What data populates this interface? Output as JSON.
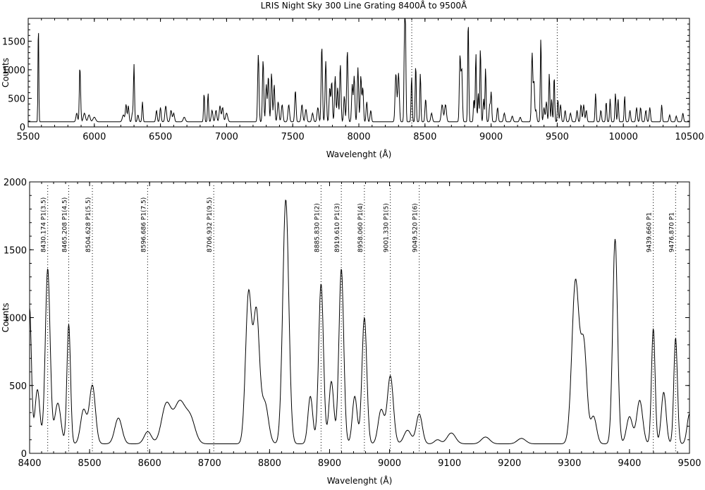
{
  "chart_data": [
    {
      "type": "line",
      "title": "LRIS Night Sky 300 Line Grating 8400Å to 9500Å",
      "xlabel": "Wavelenght (Å)",
      "ylabel": "Counts",
      "xlim": [
        5500,
        10500
      ],
      "ylim": [
        0,
        1900
      ],
      "x_ticks": [
        5500,
        6000,
        6500,
        7000,
        7500,
        8000,
        8500,
        9000,
        9500,
        10000,
        10500
      ],
      "y_ticks": [
        0,
        500,
        1000,
        1500
      ],
      "vlines": [
        8400,
        9500
      ],
      "baseline": 90,
      "peaks": [
        [
          5577,
          1780,
          3
        ],
        [
          5867,
          150,
          6
        ],
        [
          5890,
          850,
          4
        ],
        [
          5896,
          300,
          4
        ],
        [
          5925,
          150,
          8
        ],
        [
          5960,
          120,
          8
        ],
        [
          6000,
          80,
          10
        ],
        [
          6220,
          120,
          8
        ],
        [
          6240,
          300,
          5
        ],
        [
          6257,
          280,
          5
        ],
        [
          6288,
          150,
          5
        ],
        [
          6300,
          1000,
          4
        ],
        [
          6330,
          120,
          5
        ],
        [
          6364,
          350,
          4
        ],
        [
          6470,
          200,
          5
        ],
        [
          6500,
          250,
          5
        ],
        [
          6540,
          280,
          6
        ],
        [
          6580,
          200,
          6
        ],
        [
          6600,
          150,
          6
        ],
        [
          6680,
          80,
          8
        ],
        [
          6830,
          500,
          4
        ],
        [
          6860,
          500,
          4
        ],
        [
          6890,
          200,
          6
        ],
        [
          6920,
          200,
          6
        ],
        [
          6950,
          280,
          6
        ],
        [
          6970,
          250,
          6
        ],
        [
          7000,
          150,
          8
        ],
        [
          7240,
          1180,
          5
        ],
        [
          7276,
          1080,
          5
        ],
        [
          7300,
          650,
          5
        ],
        [
          7316,
          800,
          5
        ],
        [
          7340,
          850,
          5
        ],
        [
          7360,
          650,
          5
        ],
        [
          7390,
          350,
          6
        ],
        [
          7420,
          300,
          6
        ],
        [
          7470,
          300,
          6
        ],
        [
          7520,
          550,
          5
        ],
        [
          7570,
          300,
          6
        ],
        [
          7600,
          220,
          6
        ],
        [
          7650,
          150,
          6
        ],
        [
          7690,
          250,
          6
        ],
        [
          7720,
          1330,
          5
        ],
        [
          7750,
          1060,
          5
        ],
        [
          7780,
          600,
          5
        ],
        [
          7795,
          700,
          5
        ],
        [
          7821,
          800,
          5
        ],
        [
          7840,
          600,
          5
        ],
        [
          7860,
          1000,
          5
        ],
        [
          7890,
          450,
          5
        ],
        [
          7913,
          1260,
          5
        ],
        [
          7950,
          650,
          5
        ],
        [
          7965,
          800,
          5
        ],
        [
          7993,
          950,
          5
        ],
        [
          8015,
          800,
          5
        ],
        [
          8030,
          600,
          5
        ],
        [
          8060,
          350,
          5
        ],
        [
          8090,
          200,
          5
        ],
        [
          8280,
          850,
          6
        ],
        [
          8300,
          850,
          6
        ],
        [
          8345,
          1300,
          4
        ],
        [
          8352,
          1700,
          4
        ],
        [
          8399,
          800,
          4
        ],
        [
          8430,
          1000,
          4
        ],
        [
          8465,
          850,
          4
        ],
        [
          8505,
          400,
          5
        ],
        [
          8550,
          150,
          6
        ],
        [
          8630,
          300,
          7
        ],
        [
          8655,
          300,
          7
        ],
        [
          8765,
          1150,
          5
        ],
        [
          8778,
          900,
          5
        ],
        [
          8827,
          1790,
          4
        ],
        [
          8870,
          400,
          4
        ],
        [
          8885,
          1200,
          4
        ],
        [
          8903,
          500,
          4
        ],
        [
          8919,
          1300,
          4
        ],
        [
          8943,
          400,
          4
        ],
        [
          8958,
          950,
          4
        ],
        [
          8990,
          300,
          5
        ],
        [
          9001,
          500,
          4
        ],
        [
          9049,
          250,
          5
        ],
        [
          9100,
          150,
          6
        ],
        [
          9160,
          100,
          6
        ],
        [
          9220,
          80,
          6
        ],
        [
          9310,
          1200,
          5
        ],
        [
          9324,
          700,
          5
        ],
        [
          9340,
          200,
          5
        ],
        [
          9376,
          1480,
          4
        ],
        [
          9400,
          250,
          5
        ],
        [
          9418,
          350,
          5
        ],
        [
          9440,
          850,
          4
        ],
        [
          9458,
          400,
          4
        ],
        [
          9477,
          800,
          4
        ],
        [
          9505,
          400,
          4
        ],
        [
          9525,
          300,
          5
        ],
        [
          9560,
          200,
          5
        ],
        [
          9600,
          150,
          6
        ],
        [
          9650,
          200,
          5
        ],
        [
          9680,
          300,
          5
        ],
        [
          9700,
          300,
          5
        ],
        [
          9720,
          200,
          5
        ],
        [
          9790,
          500,
          4
        ],
        [
          9830,
          200,
          5
        ],
        [
          9870,
          350,
          4
        ],
        [
          9900,
          400,
          4
        ],
        [
          9940,
          500,
          4
        ],
        [
          9960,
          400,
          4
        ],
        [
          10010,
          450,
          4
        ],
        [
          10050,
          200,
          5
        ],
        [
          10100,
          250,
          5
        ],
        [
          10130,
          250,
          5
        ],
        [
          10170,
          200,
          5
        ],
        [
          10200,
          250,
          5
        ],
        [
          10290,
          300,
          4
        ],
        [
          10350,
          120,
          5
        ],
        [
          10400,
          100,
          5
        ],
        [
          10450,
          150,
          5
        ]
      ]
    },
    {
      "type": "line",
      "xlabel": "Wavelenght (Å)",
      "ylabel": "Counts",
      "xlim": [
        8400,
        9500
      ],
      "ylim": [
        0,
        2000
      ],
      "x_ticks": [
        8400,
        8500,
        8600,
        8700,
        8800,
        8900,
        9000,
        9100,
        9200,
        9300,
        9400,
        9500
      ],
      "y_ticks": [
        0,
        500,
        1000,
        1500,
        2000
      ],
      "baseline": 70,
      "peaks": [
        [
          8400,
          1000,
          3
        ],
        [
          8413,
          400,
          4
        ],
        [
          8430.174,
          1290,
          4
        ],
        [
          8447,
          300,
          5
        ],
        [
          8465.208,
          880,
          3
        ],
        [
          8490,
          250,
          5
        ],
        [
          8504.628,
          430,
          5
        ],
        [
          8548,
          190,
          6
        ],
        [
          8597,
          90,
          6
        ],
        [
          8628,
          290,
          8
        ],
        [
          8650,
          300,
          9
        ],
        [
          8668,
          180,
          8
        ],
        [
          8765,
          1100,
          5
        ],
        [
          8778,
          950,
          5
        ],
        [
          8792,
          300,
          6
        ],
        [
          8827,
          1800,
          5
        ],
        [
          8868,
          350,
          4
        ],
        [
          8885.83,
          1180,
          4
        ],
        [
          8903,
          460,
          4
        ],
        [
          8919.61,
          1290,
          4
        ],
        [
          8942,
          350,
          4
        ],
        [
          8958.06,
          930,
          4
        ],
        [
          8986,
          250,
          5
        ],
        [
          9001.33,
          500,
          5
        ],
        [
          9030,
          100,
          6
        ],
        [
          9049.52,
          220,
          5
        ],
        [
          9080,
          30,
          5
        ],
        [
          9103,
          80,
          7
        ],
        [
          9160,
          50,
          7
        ],
        [
          9220,
          40,
          7
        ],
        [
          9310,
          1200,
          6
        ],
        [
          9324,
          700,
          5
        ],
        [
          9340,
          200,
          5
        ],
        [
          9376,
          1510,
          4
        ],
        [
          9400,
          200,
          5
        ],
        [
          9417,
          320,
          5
        ],
        [
          9439.66,
          850,
          3
        ],
        [
          9457,
          380,
          4
        ],
        [
          9476.87,
          780,
          3
        ],
        [
          9500,
          220,
          4
        ]
      ],
      "annotations": [
        {
          "x": 8430.174,
          "label": "8430.174 P1(3.5)"
        },
        {
          "x": 8465.208,
          "label": "8465.208 P1(4.5)"
        },
        {
          "x": 8504.628,
          "label": "8504.628 P1(5.5)"
        },
        {
          "x": 8596.686,
          "label": "8596.686 P1(7.5)"
        },
        {
          "x": 8706.932,
          "label": "8706.932 P1(9.5)"
        },
        {
          "x": 8885.83,
          "label": "8885.830 P1(2)"
        },
        {
          "x": 8919.61,
          "label": "8919.610 P1(3)"
        },
        {
          "x": 8958.06,
          "label": "8958.060 P1(4)"
        },
        {
          "x": 9001.33,
          "label": "9001.330 P1(5)"
        },
        {
          "x": 9049.52,
          "label": "9049.520 P1(6)"
        },
        {
          "x": 9439.66,
          "label": "9439.660 P1"
        },
        {
          "x": 9476.87,
          "label": "9476.870 P1"
        }
      ]
    }
  ]
}
